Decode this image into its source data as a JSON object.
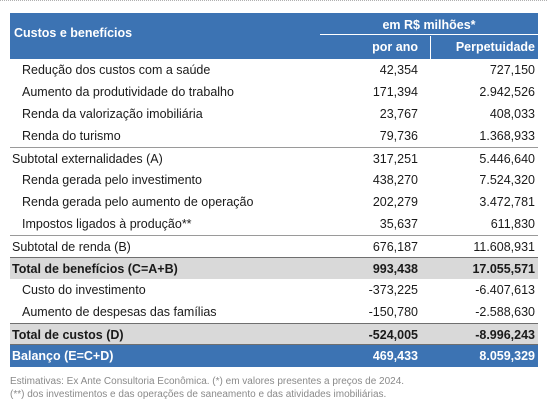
{
  "header": {
    "title": "Custos e benefícios",
    "unit": "em R$ milhões*",
    "col1": "por ano",
    "col2": "Perpetuidade"
  },
  "rows": [
    {
      "label": "Redução dos custos com a saúde",
      "v1": "42,354",
      "v2": "727,150",
      "kind": "item"
    },
    {
      "label": "Aumento da produtividade do trabalho",
      "v1": "171,394",
      "v2": "2.942,526",
      "kind": "item"
    },
    {
      "label": "Renda da valorização imobiliária",
      "v1": "23,767",
      "v2": "408,033",
      "kind": "item"
    },
    {
      "label": "Renda do turismo",
      "v1": "79,736",
      "v2": "1.368,933",
      "kind": "item"
    },
    {
      "label": "Subtotal externalidades (A)",
      "v1": "317,251",
      "v2": "5.446,640",
      "kind": "sub"
    },
    {
      "label": "Renda gerada pelo investimento",
      "v1": "438,270",
      "v2": "7.524,320",
      "kind": "item"
    },
    {
      "label": "Renda gerada pelo aumento de operação",
      "v1": "202,279",
      "v2": "3.472,781",
      "kind": "item"
    },
    {
      "label": "Impostos ligados à produção**",
      "v1": "35,637",
      "v2": "611,830",
      "kind": "item"
    },
    {
      "label": "Subtotal de renda (B)",
      "v1": "676,187",
      "v2": "11.608,931",
      "kind": "sub"
    },
    {
      "label": "Total de benefícios (C=A+B)",
      "v1": "993,438",
      "v2": "17.055,571",
      "kind": "total"
    },
    {
      "label": "Custo do investimento",
      "v1": "-373,225",
      "v2": "-6.407,613",
      "kind": "item"
    },
    {
      "label": "Aumento de despesas das famílias",
      "v1": "-150,780",
      "v2": "-2.588,630",
      "kind": "item"
    },
    {
      "label": "Total de custos (D)",
      "v1": "-524,005",
      "v2": "-8.996,243",
      "kind": "total"
    },
    {
      "label": "Balanço (E=C+D)",
      "v1": "469,433",
      "v2": "8.059,329",
      "kind": "bal"
    }
  ],
  "notes": {
    "line1": "Estimativas: Ex Ante Consultoria Econômica. (*) em valores presentes a preços de 2024.",
    "line2": "(**) dos investimentos e das operações de saneamento e das atividades imobiliárias."
  },
  "colors": {
    "header_blue": "#3c73b3",
    "total_gray": "#d9d9d9"
  }
}
